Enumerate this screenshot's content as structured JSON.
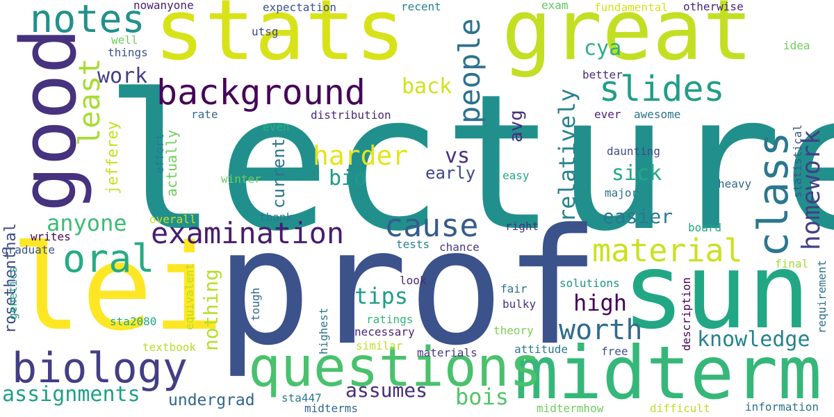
{
  "words": [
    {
      "text": "lecture",
      "color": "#21908d"
    },
    {
      "text": "prof",
      "color": "#3b528b"
    },
    {
      "text": "stats",
      "color": "#d8e219"
    },
    {
      "text": "great",
      "color": "#c2df23"
    },
    {
      "text": "sun",
      "color": "#22a785"
    },
    {
      "text": "lei",
      "color": "#fde725"
    },
    {
      "text": "good",
      "color": "#46327e"
    },
    {
      "text": "midterm",
      "color": "#35b779"
    },
    {
      "text": "questions",
      "color": "#4ac16d"
    },
    {
      "text": "biology",
      "color": "#433e85"
    },
    {
      "text": "background",
      "color": "#450559"
    },
    {
      "text": "class",
      "color": "#2a788e"
    },
    {
      "text": "slides",
      "color": "#1f9e89"
    },
    {
      "text": "examination",
      "color": "#481c6e"
    },
    {
      "text": "notes",
      "color": "#21918c"
    },
    {
      "text": "cause",
      "color": "#365c8d"
    },
    {
      "text": "oral",
      "color": "#25ac82"
    },
    {
      "text": "material",
      "color": "#cae11f"
    },
    {
      "text": "people",
      "color": "#2c728e"
    },
    {
      "text": "homework",
      "color": "#424086"
    },
    {
      "text": "least",
      "color": "#a8db34"
    },
    {
      "text": "worth",
      "color": "#2f6b8e"
    },
    {
      "text": "knowledge",
      "color": "#26828e"
    },
    {
      "text": "assignments",
      "color": "#1fa088"
    },
    {
      "text": "anyone",
      "color": "#3dbc74"
    },
    {
      "text": "harder",
      "color": "#e5e419"
    },
    {
      "text": "tips",
      "color": "#1e9c89"
    },
    {
      "text": "high",
      "color": "#440154"
    },
    {
      "text": "assumes",
      "color": "#472c7a"
    },
    {
      "text": "bois",
      "color": "#52c569"
    },
    {
      "text": "work",
      "color": "#423f85"
    },
    {
      "text": "cya",
      "color": "#2ab07f"
    },
    {
      "text": "back",
      "color": "#d0e11c"
    },
    {
      "text": "nothing",
      "color": "#b5de2b"
    },
    {
      "text": "rosethenthal",
      "color": "#3e4989"
    },
    {
      "text": "relatively",
      "color": "#26828e"
    },
    {
      "text": "sick",
      "color": "#23a983"
    },
    {
      "text": "easier",
      "color": "#29798e"
    },
    {
      "text": "vs",
      "color": "#472d7b"
    },
    {
      "text": "bio",
      "color": "#1f9a8a"
    },
    {
      "text": "avg",
      "color": "#472f7d"
    },
    {
      "text": "undergrad",
      "color": "#31668e"
    },
    {
      "text": "early",
      "color": "#3f4788"
    },
    {
      "text": "current",
      "color": "#2b748e"
    },
    {
      "text": "jefferey",
      "color": "#c5e021"
    },
    {
      "text": "actually",
      "color": "#6ece58"
    },
    {
      "text": "nowanyone",
      "color": "#482071"
    },
    {
      "text": "expectation",
      "color": "#3b528b"
    },
    {
      "text": "recent",
      "color": "#26828e"
    },
    {
      "text": "exam",
      "color": "#5ec962"
    },
    {
      "text": "fundamental",
      "color": "#d5e21a"
    },
    {
      "text": "otherwise",
      "color": "#482677"
    },
    {
      "text": "idea",
      "color": "#6ece58"
    },
    {
      "text": "utsg",
      "color": "#3e4989"
    },
    {
      "text": "well",
      "color": "#6ece58"
    },
    {
      "text": "things",
      "color": "#3b528b"
    },
    {
      "text": "better",
      "color": "#472c7a"
    },
    {
      "text": "distribution",
      "color": "#482878"
    },
    {
      "text": "awesome",
      "color": "#2c728e"
    },
    {
      "text": "ever",
      "color": "#482475"
    },
    {
      "text": "rate",
      "color": "#31688e"
    },
    {
      "text": "even",
      "color": "#2ab07f"
    },
    {
      "text": "effort",
      "color": "#2a788e"
    },
    {
      "text": "statistical",
      "color": "#39568c"
    },
    {
      "text": "daunting",
      "color": "#3e4989"
    },
    {
      "text": "easy",
      "color": "#22a884"
    },
    {
      "text": "winter",
      "color": "#6ece58"
    },
    {
      "text": "major",
      "color": "#2c728e"
    },
    {
      "text": "heavy",
      "color": "#31668e"
    },
    {
      "text": "overall",
      "color": "#c5e021"
    },
    {
      "text": "thank",
      "color": "#2a788e"
    },
    {
      "text": "writes",
      "color": "#440154"
    },
    {
      "text": "right",
      "color": "#46327e"
    },
    {
      "text": "board",
      "color": "#22a884"
    },
    {
      "text": "graduate",
      "color": "#3b528b"
    },
    {
      "text": "tests",
      "color": "#26828e"
    },
    {
      "text": "chance",
      "color": "#453882"
    },
    {
      "text": "final",
      "color": "#a0da39"
    },
    {
      "text": "genetics",
      "color": "#1fa187"
    },
    {
      "text": "equivalent",
      "color": "#b5de2b"
    },
    {
      "text": "look",
      "color": "#482878"
    },
    {
      "text": "fair",
      "color": "#2d708e"
    },
    {
      "text": "solutions",
      "color": "#21918c"
    },
    {
      "text": "requirement",
      "color": "#2c728e"
    },
    {
      "text": "tough",
      "color": "#31688e"
    },
    {
      "text": "bulky",
      "color": "#46327e"
    },
    {
      "text": "highest",
      "color": "#2c728e"
    },
    {
      "text": "description",
      "color": "#440154"
    },
    {
      "text": "sta2080",
      "color": "#22a884"
    },
    {
      "text": "ratings",
      "color": "#35b779"
    },
    {
      "text": "necessary",
      "color": "#482677"
    },
    {
      "text": "theory",
      "color": "#7ad151"
    },
    {
      "text": "textbook",
      "color": "#b5de2b"
    },
    {
      "text": "similar",
      "color": "#bddf26"
    },
    {
      "text": "materials",
      "color": "#453882"
    },
    {
      "text": "attitude",
      "color": "#2a788e"
    },
    {
      "text": "free",
      "color": "#3b528b"
    },
    {
      "text": "sta447",
      "color": "#2a788e"
    },
    {
      "text": "midterms",
      "color": "#31668e"
    },
    {
      "text": "midtermhow",
      "color": "#6ece58"
    },
    {
      "text": "difficult",
      "color": "#bddf26"
    },
    {
      "text": "information",
      "color": "#2c728e"
    }
  ]
}
